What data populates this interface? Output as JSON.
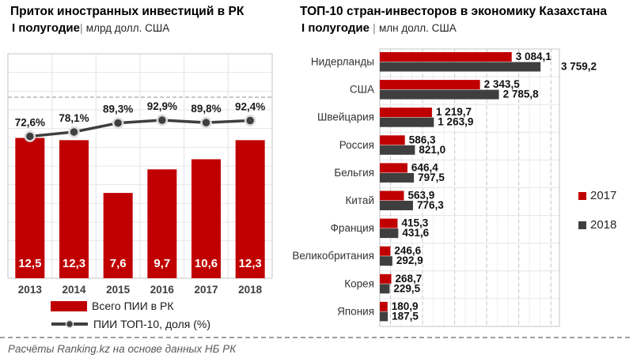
{
  "left_chart": {
    "title": "Приток иностранных инвестиций в РК",
    "subtitle_bold": "I полугодие",
    "subtitle_sep": "|",
    "subtitle_units": "млрд долл. США",
    "legend": [
      {
        "label": "Всего ПИИ в РК",
        "color": "#C00000",
        "type": "bar"
      },
      {
        "label": "ПИИ ТОП-10, доля (%)",
        "color": "#3F3F3F",
        "type": "line"
      }
    ]
  },
  "right_chart": {
    "title": "ТОП-10 стран-инвесторов в экономику Казахстана",
    "subtitle_bold": "I полугодие",
    "subtitle_sep": "|",
    "subtitle_units": "млн долл. США",
    "legend": [
      {
        "label": "2017",
        "color": "#C00000"
      },
      {
        "label": "2018",
        "color": "#3F3F3F"
      }
    ]
  },
  "footer": {
    "text": "Расчёты Ranking.kz на основе данных НБ РК"
  },
  "colors": {
    "accent_red": "#C00000",
    "dark_gray": "#3F3F3F",
    "grid_light": "#E7E7E7",
    "grid_dash": "#C4C4C4",
    "plot_border": "#C6C6C6"
  },
  "chart_data": [
    {
      "type": "bar",
      "title": "Приток иностранных инвестиций в РК, I полугодие, млрд долл. США",
      "categories": [
        "2013",
        "2014",
        "2015",
        "2016",
        "2017",
        "2018"
      ],
      "series": [
        {
          "name": "Всего ПИИ в РК",
          "type": "bar",
          "color": "#C00000",
          "values": [
            12.5,
            12.3,
            7.6,
            9.7,
            10.6,
            12.3
          ],
          "labels": [
            "12,5",
            "12,3",
            "7,6",
            "9,7",
            "10,6",
            "12,3"
          ]
        },
        {
          "name": "ПИИ ТОП-10, доля (%)",
          "type": "line",
          "color": "#3F3F3F",
          "values": [
            72.6,
            78.1,
            89.3,
            92.9,
            89.8,
            92.4
          ],
          "labels": [
            "72,6%",
            "78,1%",
            "89,3%",
            "92,9%",
            "89,8%",
            "92,4%"
          ]
        }
      ],
      "ylim": [
        0,
        20
      ],
      "y2lim": [
        -105,
        176
      ],
      "grid": true,
      "legend_position": "bottom"
    },
    {
      "type": "bar",
      "orientation": "horizontal",
      "title": "ТОП-10 стран-инвесторов в экономику Казахстана, I полугодие, млн долл. США",
      "categories": [
        "Нидерланды",
        "США",
        "Швейцария",
        "Россия",
        "Бельгия",
        "Китай",
        "Франция",
        "Великобритания",
        "Корея",
        "Япония"
      ],
      "series": [
        {
          "name": "2017",
          "color": "#C00000",
          "values": [
            3084.1,
            2343.5,
            1219.7,
            586.3,
            646.4,
            563.9,
            415.3,
            246.6,
            268.7,
            180.9
          ],
          "labels": [
            "3 084,1",
            "2 343,5",
            "1 219,7",
            "586,3",
            "646,4",
            "563,9",
            "415,3",
            "246,6",
            "268,7",
            "180,9"
          ]
        },
        {
          "name": "2018",
          "color": "#3F3F3F",
          "values": [
            3759.2,
            2785.8,
            1263.9,
            821.0,
            797.5,
            776.3,
            431.6,
            292.9,
            229.5,
            187.5
          ],
          "labels": [
            "3 759,2",
            "2 785,8",
            "1 263,9",
            "821,0",
            "797,5",
            "776,3",
            "431,6",
            "292,9",
            "229,5",
            "187,5"
          ]
        }
      ],
      "xlim": [
        0,
        4200
      ],
      "grid": true,
      "legend_position": "right"
    }
  ]
}
